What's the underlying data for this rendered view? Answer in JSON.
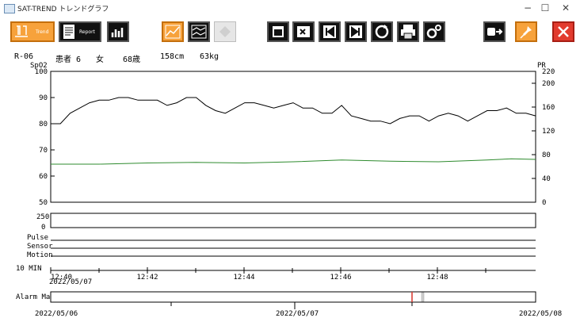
{
  "window": {
    "title": "SAT-TREND トレンドグラフ",
    "controls": {
      "minimize": "−",
      "maximize": "☐",
      "close": "✕"
    }
  },
  "toolbar": {
    "trend_label": "Trend",
    "report_label": "Report",
    "icons": [
      "trend-icon",
      "report-icon",
      "bar-chart-icon",
      "line-chart-icon",
      "multi-line-chart-icon",
      "diamond-icon",
      "calendar-icon",
      "cursor-edit-icon",
      "skip-back-icon",
      "skip-forward-icon",
      "refresh-icon",
      "print-pdf-icon",
      "settings-gears-icon",
      "export-icon",
      "pin-icon",
      "close-red-icon"
    ],
    "colors": {
      "dark": "#111111",
      "orange": "#f7a23b",
      "red": "#e23b2e"
    }
  },
  "patient": {
    "room": "R-06",
    "name": "患者 6",
    "sex": "女",
    "age": "68歳",
    "height": "158cm",
    "weight": "63kg"
  },
  "chart_data": {
    "type": "line",
    "left_axis_label": "SpO2",
    "right_axis_label": "PR",
    "left_ticks": [
      "100",
      "90",
      "80",
      "70",
      "60",
      "50"
    ],
    "left_range": [
      50,
      100
    ],
    "right_ticks": [
      "220",
      "200",
      "160",
      "120",
      "80",
      "40",
      "0"
    ],
    "right_range": [
      0,
      220
    ],
    "x_ticks": [
      "12:40",
      "12:42",
      "12:44",
      "12:46",
      "12:48"
    ],
    "x_start_date": "2022/05/07",
    "series": [
      {
        "axis": "left",
        "color": "#000000",
        "x": [
          0,
          0.02,
          0.04,
          0.06,
          0.08,
          0.1,
          0.12,
          0.14,
          0.16,
          0.18,
          0.2,
          0.22,
          0.24,
          0.26,
          0.28,
          0.3,
          0.32,
          0.34,
          0.36,
          0.38,
          0.4,
          0.42,
          0.44,
          0.46,
          0.48,
          0.5,
          0.52,
          0.54,
          0.56,
          0.58,
          0.6,
          0.62,
          0.64,
          0.66,
          0.68,
          0.7,
          0.72,
          0.74,
          0.76,
          0.78,
          0.8,
          0.82,
          0.84,
          0.86,
          0.88,
          0.9,
          0.92,
          0.94,
          0.96,
          0.98,
          1.0
        ],
        "values": [
          80,
          80,
          84,
          86,
          88,
          89,
          89,
          90,
          90,
          89,
          89,
          89,
          87,
          88,
          90,
          90,
          87,
          85,
          84,
          86,
          88,
          88,
          87,
          86,
          87,
          88,
          86,
          86,
          84,
          84,
          87,
          83,
          82,
          81,
          81,
          80,
          82,
          83,
          83,
          81,
          83,
          84,
          83,
          81,
          83,
          85,
          85,
          86,
          84,
          84,
          83
        ]
      },
      {
        "axis": "right",
        "color": "#2e8b2e",
        "x": [
          0,
          0.1,
          0.2,
          0.3,
          0.4,
          0.5,
          0.6,
          0.7,
          0.8,
          0.9,
          0.95,
          1.0
        ],
        "values": [
          64,
          64,
          66,
          67,
          66,
          68,
          71,
          69,
          68,
          71,
          73,
          72
        ]
      }
    ]
  },
  "event_panel": {
    "scale_top": "250",
    "scale_bottom": "0",
    "rows": [
      "Pulse",
      "Sensor",
      "Motion"
    ],
    "interval_label": "10 MIN"
  },
  "alarm_map": {
    "label": "Alarm Map",
    "dates": [
      "2022/05/06",
      "2022/05/07",
      "2022/05/08"
    ],
    "marker_color": "#d9342b"
  }
}
